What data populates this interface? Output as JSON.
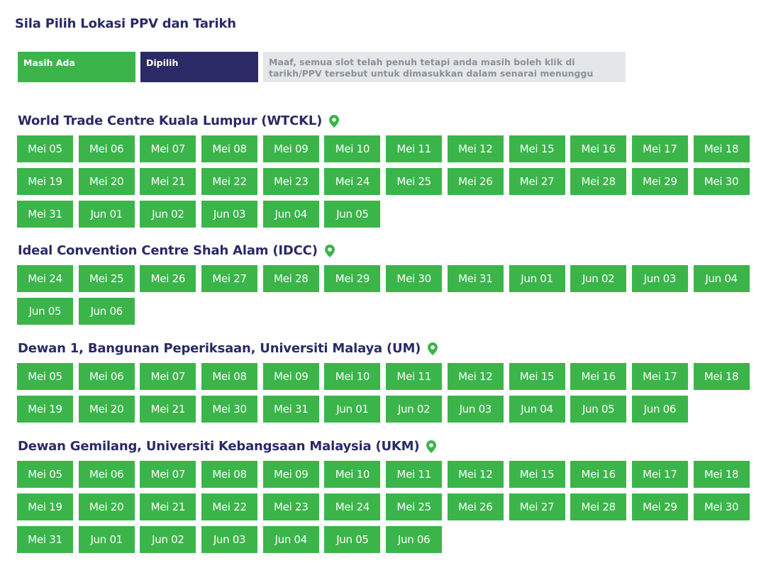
{
  "page": {
    "title": "Sila Pilih Lokasi PPV dan Tarikh"
  },
  "legend": {
    "available": "Masih Ada",
    "selected": "Dipilih",
    "full_note": "Maaf, semua slot telah penuh tetapi anda masih boleh klik di tarikh/PPV tersebut untuk dimasukkan dalam senarai menunggu"
  },
  "colors": {
    "available": "#3bb54a",
    "selected": "#2b2a66",
    "full": "#e3e7ea",
    "heading": "#2b2a66",
    "pin": "#3bb54a"
  },
  "locations": [
    {
      "name": "World Trade Centre Kuala Lumpur (WTCKL)",
      "icon": "location-pin-icon",
      "dates": [
        "Mei 05",
        "Mei 06",
        "Mei 07",
        "Mei 08",
        "Mei 09",
        "Mei 10",
        "Mei 11",
        "Mei 12",
        "Mei 15",
        "Mei 16",
        "Mei 17",
        "Mei 18",
        "Mei 19",
        "Mei 20",
        "Mei 21",
        "Mei 22",
        "Mei 23",
        "Mei 24",
        "Mei 25",
        "Mei 26",
        "Mei 27",
        "Mei 28",
        "Mei 29",
        "Mei 30",
        "Mei 31",
        "Jun 01",
        "Jun 02",
        "Jun 03",
        "Jun 04",
        "Jun 05"
      ]
    },
    {
      "name": "Ideal Convention Centre Shah Alam (IDCC)",
      "icon": "location-pin-icon",
      "dates": [
        "Mei 24",
        "Mei 25",
        "Mei 26",
        "Mei 27",
        "Mei 28",
        "Mei 29",
        "Mei 30",
        "Mei 31",
        "Jun 01",
        "Jun 02",
        "Jun 03",
        "Jun 04",
        "Jun 05",
        "Jun 06"
      ]
    },
    {
      "name": "Dewan 1, Bangunan Peperiksaan, Universiti Malaya (UM)",
      "icon": "location-pin-icon",
      "dates": [
        "Mei 05",
        "Mei 06",
        "Mei 07",
        "Mei 08",
        "Mei 09",
        "Mei 10",
        "Mei 11",
        "Mei 12",
        "Mei 15",
        "Mei 16",
        "Mei 17",
        "Mei 18",
        "Mei 19",
        "Mei 20",
        "Mei 21",
        "Mei 30",
        "Mei 31",
        "Jun 01",
        "Jun 02",
        "Jun 03",
        "Jun 04",
        "Jun 05",
        "Jun 06"
      ]
    },
    {
      "name": "Dewan Gemilang, Universiti Kebangsaan Malaysia (UKM)",
      "icon": "location-pin-icon",
      "dates": [
        "Mei 05",
        "Mei 06",
        "Mei 07",
        "Mei 08",
        "Mei 09",
        "Mei 10",
        "Mei 11",
        "Mei 12",
        "Mei 15",
        "Mei 16",
        "Mei 17",
        "Mei 18",
        "Mei 19",
        "Mei 20",
        "Mei 21",
        "Mei 22",
        "Mei 23",
        "Mei 24",
        "Mei 25",
        "Mei 26",
        "Mei 27",
        "Mei 28",
        "Mei 29",
        "Mei 30",
        "Mei 31",
        "Jun 01",
        "Jun 02",
        "Jun 03",
        "Jun 04",
        "Jun 05",
        "Jun 06"
      ]
    }
  ]
}
